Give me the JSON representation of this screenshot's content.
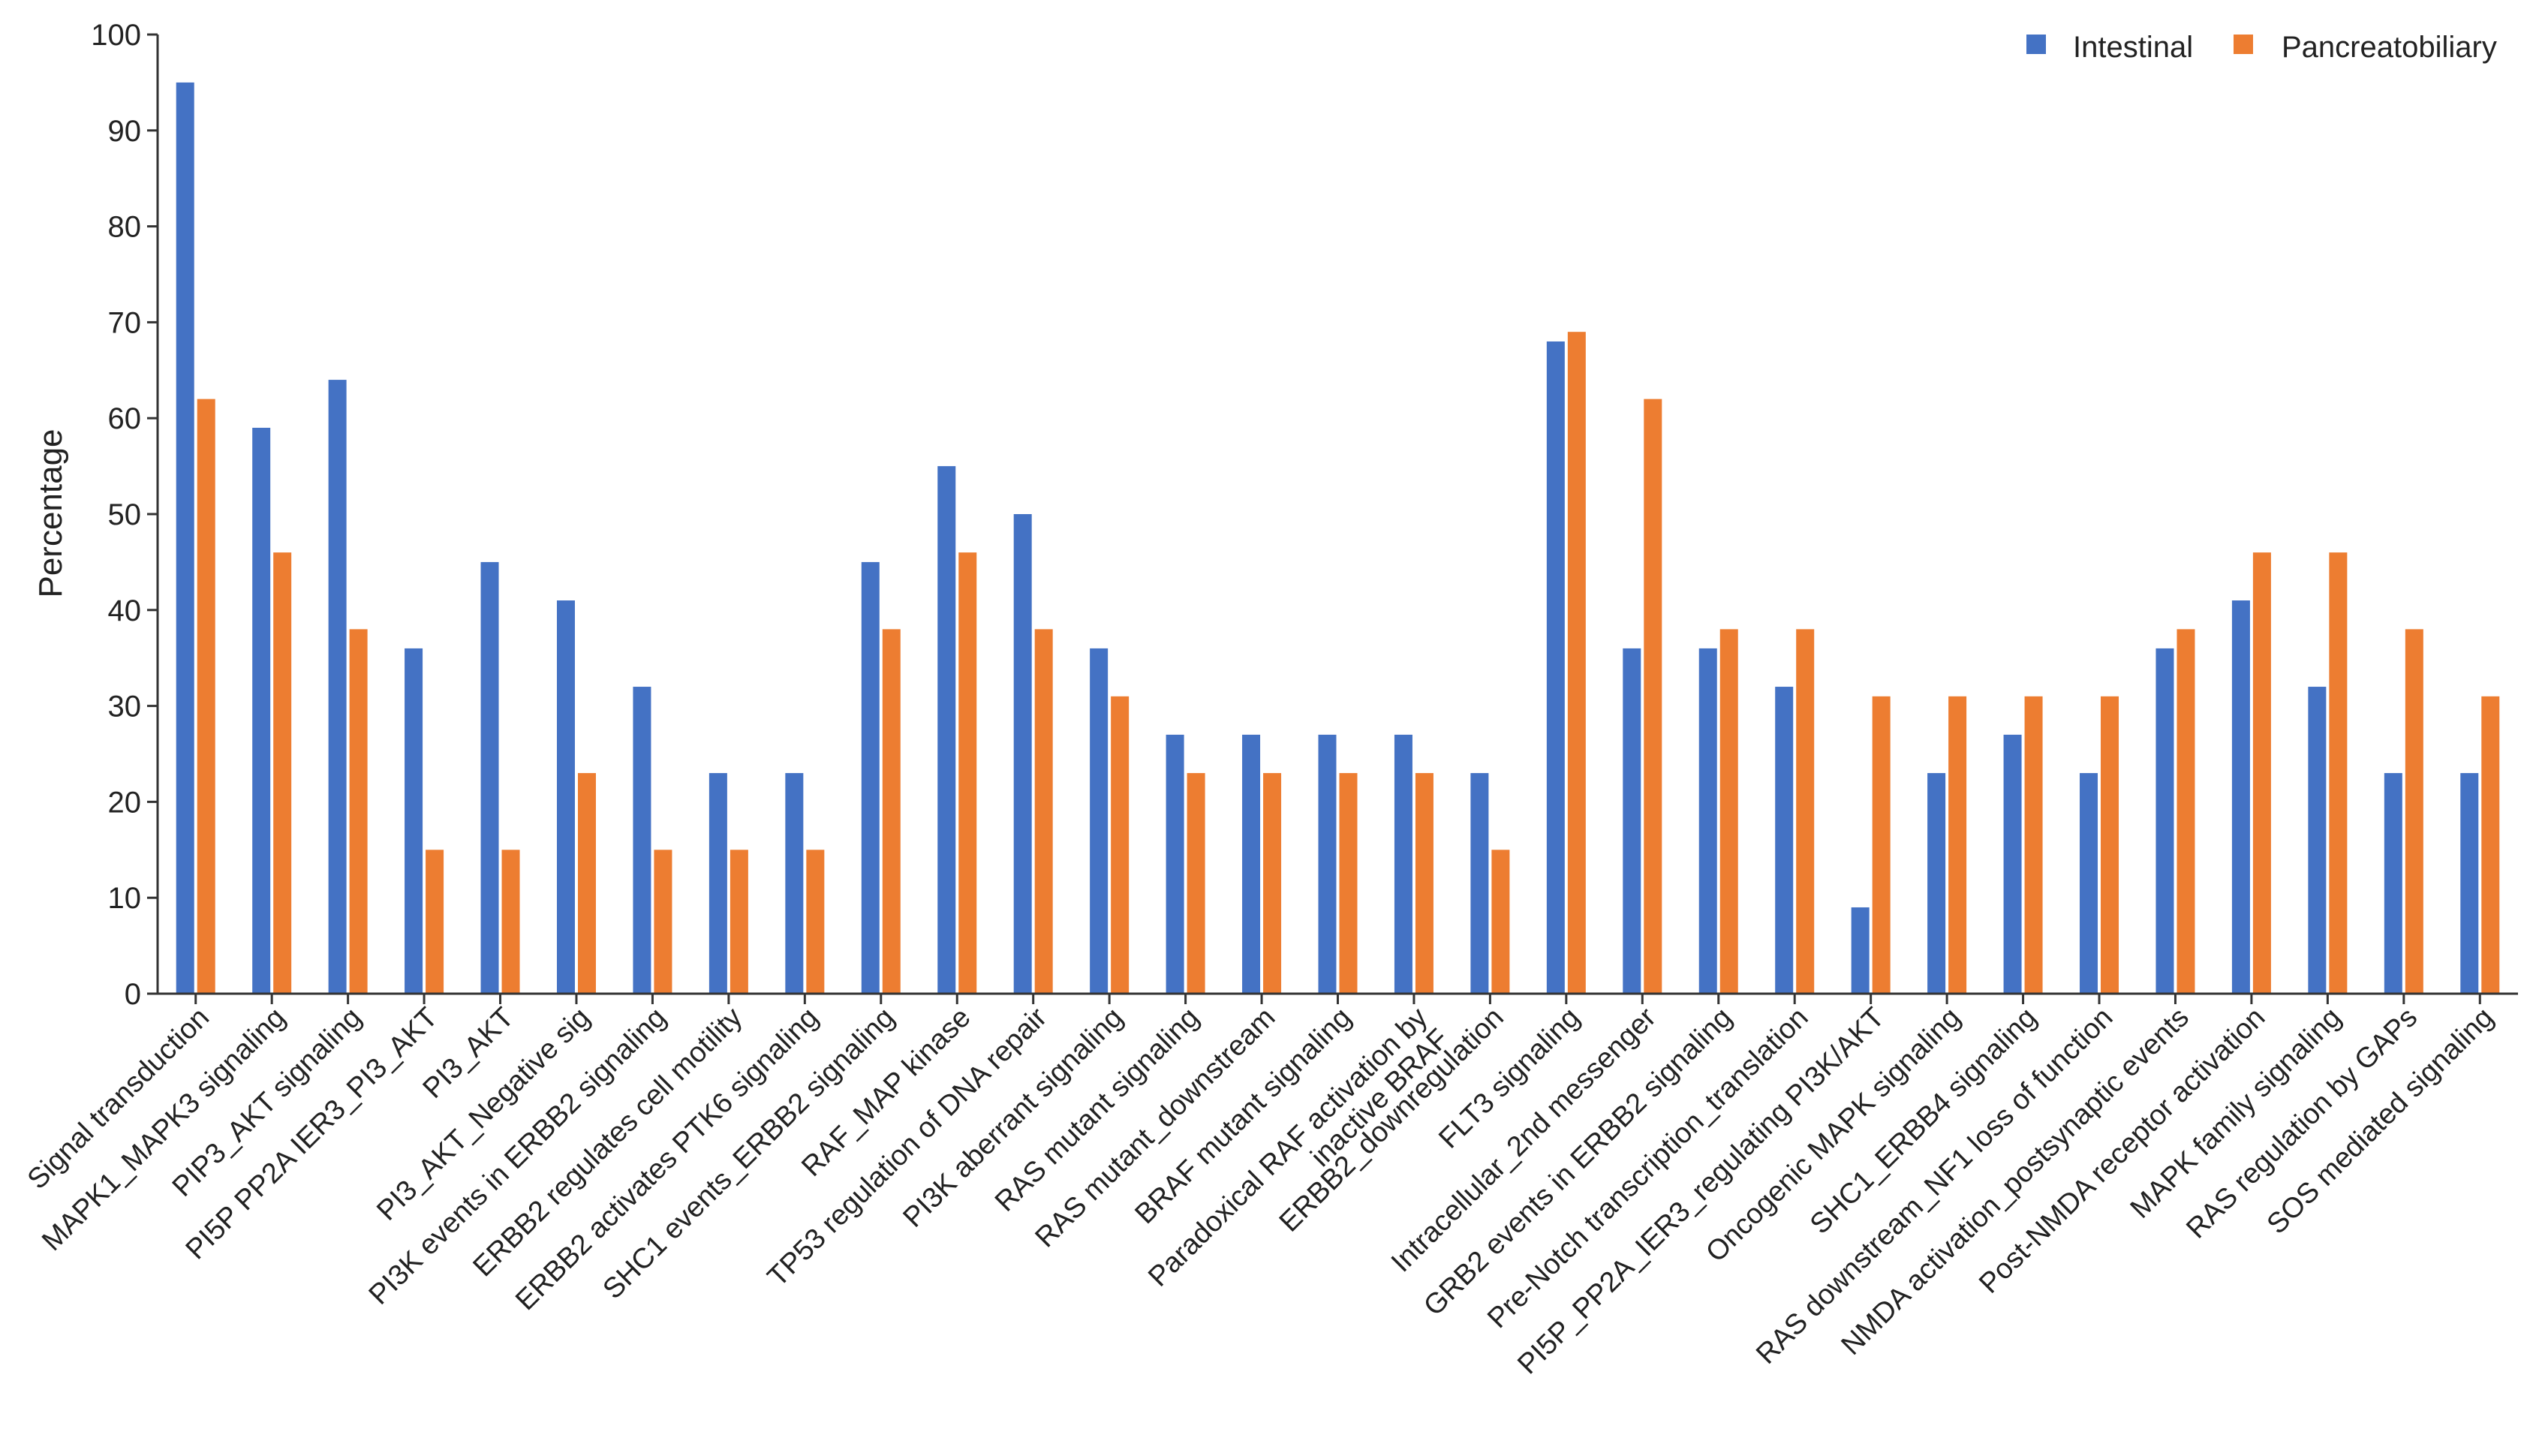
{
  "colors": {
    "intestinal": "#4472C4",
    "pancreatobiliary": "#ED7D31",
    "axis": "#333333"
  },
  "legend": {
    "position": "top-right",
    "items": [
      {
        "label": "Intestinal",
        "color": "#4472C4"
      },
      {
        "label": "Pancreatobiliary",
        "color": "#ED7D31"
      }
    ]
  },
  "chart_data": {
    "type": "bar",
    "title": "",
    "xlabel": "",
    "ylabel": "Percentage",
    "ylim": [
      0,
      100
    ],
    "yticks": [
      0,
      10,
      20,
      30,
      40,
      50,
      60,
      70,
      80,
      90,
      100
    ],
    "grid": false,
    "categories": [
      "Signal transduction",
      "MAPK1_MAPK3 signaling",
      "PIP3_AKT signaling",
      "PI5P PP2A IER3_PI3_AKT",
      "PI3_AKT",
      "PI3_AKT_Negative sig",
      "PI3K events in ERBB2 signaling",
      "ERBB2 regulates cell motility",
      "ERBB2 activates PTK6 signaling",
      "SHC1 events_ERBB2 signaling",
      "RAF_MAP kinase",
      "TP53 regulation of DNA repair",
      "PI3K aberrant signaling",
      "RAS mutant signaling",
      "RAS mutant_downstream",
      "BRAF mutant signaling",
      "Paradoxical RAF activation by inactive BRAF",
      "ERBB2_downregulation",
      "FLT3 signaling",
      "Intracellular_2nd messenger",
      "GRB2 events in ERBB2 signaling",
      "Pre-Notch transcription_translation",
      "PI5P_PP2A_IER3_regulating PI3K/AKT",
      "Oncogenic MAPK signaling",
      "SHC1_ERBB4 signaling",
      "RAS downstream_NF1 loss of function",
      "NMDA activation_postsynaptic events",
      "Post-NMDA receptor activation",
      "MAPK family signaling",
      "RAS regulation by GAPs",
      "SOS mediated signaling"
    ],
    "category_lines": [
      [
        "Signal transduction"
      ],
      [
        "MAPK1_MAPK3 signaling"
      ],
      [
        "PIP3_AKT signaling"
      ],
      [
        "PI5P PP2A IER3_PI3_AKT"
      ],
      [
        "PI3_AKT"
      ],
      [
        "PI3_AKT_Negative sig"
      ],
      [
        "PI3K events in ERBB2 signaling"
      ],
      [
        "ERBB2 regulates cell motility"
      ],
      [
        "ERBB2 activates PTK6 signaling"
      ],
      [
        "SHC1 events_ERBB2 signaling"
      ],
      [
        "RAF_MAP kinase"
      ],
      [
        "TP53 regulation of DNA repair"
      ],
      [
        "PI3K aberrant signaling"
      ],
      [
        "RAS mutant signaling"
      ],
      [
        "RAS mutant_downstream"
      ],
      [
        "BRAF mutant signaling"
      ],
      [
        "Paradoxical RAF activation by",
        "inactive BRAF"
      ],
      [
        "ERBB2_downregulation"
      ],
      [
        "FLT3 signaling"
      ],
      [
        "Intracellular_2nd messenger"
      ],
      [
        "GRB2 events in ERBB2 signaling"
      ],
      [
        "Pre-Notch transcription_translation"
      ],
      [
        "PI5P_PP2A_IER3_regulating PI3K/AKT"
      ],
      [
        "Oncogenic MAPK signaling"
      ],
      [
        "SHC1_ERBB4 signaling"
      ],
      [
        "RAS downstream_NF1 loss of function"
      ],
      [
        "NMDA activation_postsynaptic events"
      ],
      [
        "Post-NMDA receptor activation"
      ],
      [
        "MAPK family signaling"
      ],
      [
        "RAS regulation by GAPs"
      ],
      [
        "SOS mediated signaling"
      ]
    ],
    "series": [
      {
        "name": "Intestinal",
        "color": "#4472C4",
        "values": [
          95,
          59,
          64,
          36,
          45,
          41,
          32,
          23,
          23,
          45,
          55,
          50,
          36,
          27,
          27,
          27,
          27,
          23,
          68,
          36,
          36,
          32,
          9,
          23,
          27,
          23,
          36,
          41,
          32,
          23,
          23
        ]
      },
      {
        "name": "Pancreatobiliary",
        "color": "#ED7D31",
        "values": [
          62,
          46,
          38,
          15,
          15,
          23,
          15,
          15,
          15,
          38,
          46,
          38,
          31,
          23,
          23,
          23,
          23,
          15,
          69,
          62,
          38,
          38,
          31,
          31,
          31,
          31,
          38,
          46,
          46,
          38,
          31
        ]
      }
    ]
  }
}
